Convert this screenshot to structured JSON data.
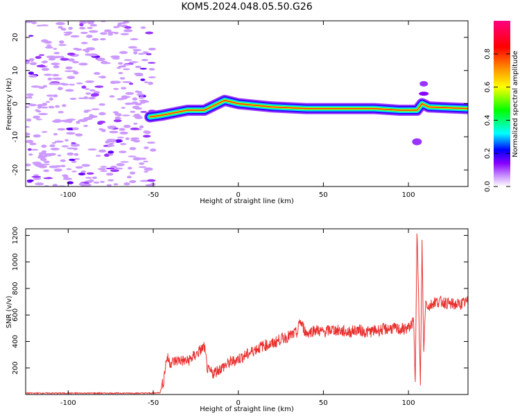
{
  "figure": {
    "title": "KOM5.2024.048.05.50.G26"
  },
  "chart_data": [
    {
      "type": "heatmap",
      "xlabel": "Height of straight line (km)",
      "ylabel": "Frequency (Hz)",
      "xlim": [
        -125,
        135
      ],
      "ylim": [
        -25,
        25
      ],
      "x_ticks": [
        -100,
        -50,
        0,
        50,
        100
      ],
      "y_ticks": [
        -20,
        -10,
        0,
        10,
        20
      ],
      "grid": false,
      "colorbar": {
        "label": "Normalized spectral amplitude",
        "range": [
          0.0,
          1.0
        ],
        "ticks": [
          0.0,
          0.2,
          0.4,
          0.6,
          0.8
        ],
        "colors": [
          "#ffffff",
          "#cc99ff",
          "#8800ff",
          "#0000ff",
          "#00ffff",
          "#00ff00",
          "#ffff00",
          "#ff8800",
          "#ff0000",
          "#ff0080"
        ]
      },
      "ridge": {
        "x": [
          -52,
          -45,
          -40,
          -30,
          -20,
          -12,
          -8,
          0,
          20,
          40,
          60,
          80,
          95,
          105,
          108,
          112,
          135
        ],
        "y": [
          -4,
          -3.5,
          -3,
          -2,
          -2,
          0,
          1,
          0,
          -1,
          -1.5,
          -1.5,
          -1.5,
          -2,
          -2,
          0,
          -1,
          -1.5
        ]
      },
      "noise_region_x": [
        -125,
        -50
      ]
    },
    {
      "type": "line",
      "xlabel": "Height of straight line (km)",
      "ylabel": "SNR (v/v)",
      "xlim": [
        -125,
        135
      ],
      "ylim": [
        0,
        1250
      ],
      "x_ticks": [
        -100,
        -50,
        0,
        50,
        100
      ],
      "y_ticks": [
        200,
        400,
        600,
        800,
        1000,
        1200
      ],
      "color": "#e8302e",
      "series": [
        {
          "x": [
            -125,
            -110,
            -100,
            -90,
            -80,
            -70,
            -60,
            -50,
            -46,
            -44,
            -43,
            -42,
            -40,
            -35,
            -30,
            -25,
            -20,
            -18,
            -15,
            -10,
            -5,
            0,
            5,
            10,
            15,
            20,
            25,
            30,
            35,
            36,
            40,
            45,
            50,
            55,
            60,
            65,
            70,
            75,
            80,
            85,
            90,
            95,
            100,
            103,
            104,
            105,
            106,
            107,
            108,
            109,
            110,
            112,
            115,
            120,
            125,
            130,
            135
          ],
          "y": [
            10,
            10,
            10,
            10,
            10,
            10,
            10,
            10,
            15,
            100,
            200,
            280,
            240,
            260,
            250,
            300,
            360,
            180,
            160,
            200,
            240,
            270,
            300,
            340,
            370,
            380,
            420,
            440,
            470,
            560,
            460,
            490,
            470,
            490,
            480,
            470,
            490,
            470,
            480,
            490,
            500,
            490,
            500,
            550,
            100,
            1250,
            700,
            60,
            1150,
            300,
            700,
            660,
            700,
            700,
            680,
            680,
            700
          ]
        }
      ]
    }
  ]
}
